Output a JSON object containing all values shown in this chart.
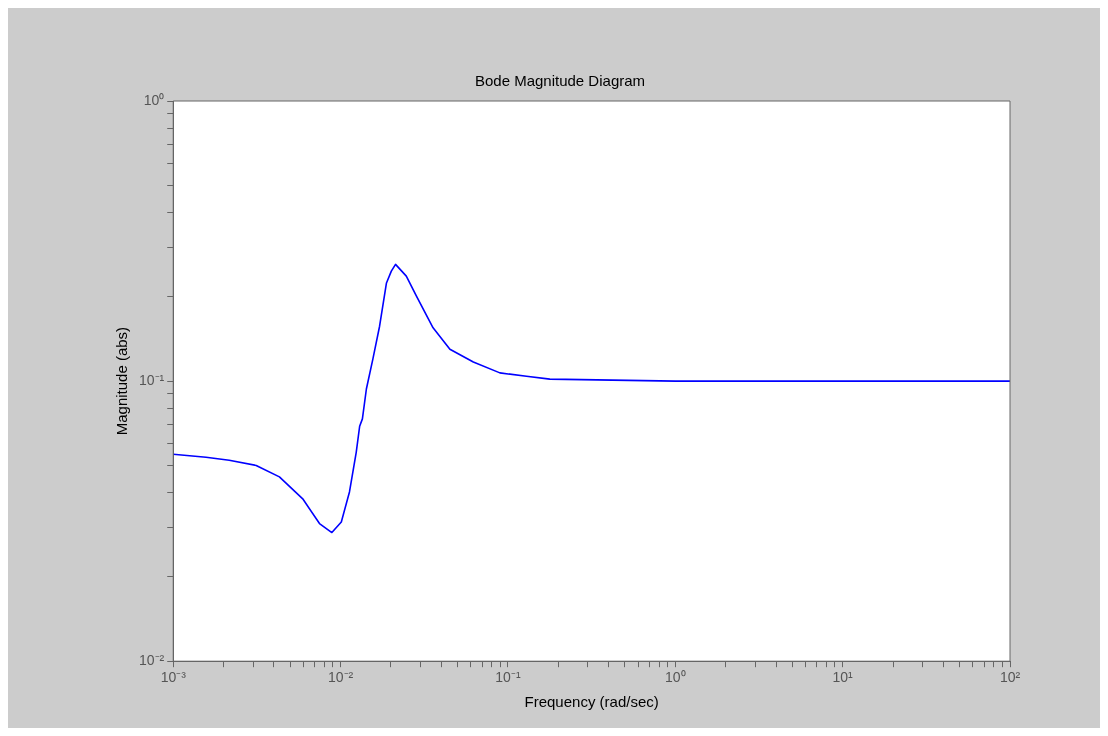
{
  "chart_data": {
    "type": "line",
    "title": "Bode Magnitude Diagram",
    "xlabel": "Frequency (rad/sec)",
    "ylabel": "Magnitude (abs)",
    "log": "xy",
    "grid": false,
    "legend": false,
    "marker": "none",
    "line_style": "solid",
    "xlim": [
      0.001,
      100
    ],
    "ylim": [
      0.01,
      1
    ],
    "xticks": [
      {
        "value": 0.001,
        "label": "10⁻³"
      },
      {
        "value": 0.002,
        "label": null
      },
      {
        "value": 0.003,
        "label": null
      },
      {
        "value": 0.004,
        "label": null
      },
      {
        "value": 0.005,
        "label": null
      },
      {
        "value": 0.006,
        "label": null
      },
      {
        "value": 0.007,
        "label": null
      },
      {
        "value": 0.008,
        "label": null
      },
      {
        "value": 0.009,
        "label": null
      },
      {
        "value": 0.01,
        "label": "10⁻²"
      },
      {
        "value": 0.02,
        "label": null
      },
      {
        "value": 0.03,
        "label": null
      },
      {
        "value": 0.04,
        "label": null
      },
      {
        "value": 0.05,
        "label": null
      },
      {
        "value": 0.06,
        "label": null
      },
      {
        "value": 0.07,
        "label": null
      },
      {
        "value": 0.08,
        "label": null
      },
      {
        "value": 0.09,
        "label": null
      },
      {
        "value": 0.1,
        "label": "10⁻¹"
      },
      {
        "value": 0.2,
        "label": null
      },
      {
        "value": 0.3,
        "label": null
      },
      {
        "value": 0.4,
        "label": null
      },
      {
        "value": 0.5,
        "label": null
      },
      {
        "value": 0.6,
        "label": null
      },
      {
        "value": 0.7,
        "label": null
      },
      {
        "value": 0.8,
        "label": null
      },
      {
        "value": 0.9,
        "label": null
      },
      {
        "value": 1,
        "label": "10⁰"
      },
      {
        "value": 2,
        "label": null
      },
      {
        "value": 3,
        "label": null
      },
      {
        "value": 4,
        "label": null
      },
      {
        "value": 5,
        "label": null
      },
      {
        "value": 6,
        "label": null
      },
      {
        "value": 7,
        "label": null
      },
      {
        "value": 8,
        "label": null
      },
      {
        "value": 9,
        "label": null
      },
      {
        "value": 10,
        "label": "10¹"
      },
      {
        "value": 20,
        "label": null
      },
      {
        "value": 30,
        "label": null
      },
      {
        "value": 40,
        "label": null
      },
      {
        "value": 50,
        "label": null
      },
      {
        "value": 60,
        "label": null
      },
      {
        "value": 70,
        "label": null
      },
      {
        "value": 80,
        "label": null
      },
      {
        "value": 90,
        "label": null
      },
      {
        "value": 100,
        "label": "10²"
      }
    ],
    "yticks": [
      {
        "value": 0.01,
        "label": "10⁻²"
      },
      {
        "value": 0.02,
        "label": null
      },
      {
        "value": 0.03,
        "label": null
      },
      {
        "value": 0.04,
        "label": null
      },
      {
        "value": 0.05,
        "label": null
      },
      {
        "value": 0.06,
        "label": null
      },
      {
        "value": 0.07,
        "label": null
      },
      {
        "value": 0.08,
        "label": null
      },
      {
        "value": 0.09,
        "label": null
      },
      {
        "value": 0.1,
        "label": "10⁻¹"
      },
      {
        "value": 0.2,
        "label": null
      },
      {
        "value": 0.3,
        "label": null
      },
      {
        "value": 0.4,
        "label": null
      },
      {
        "value": 0.5,
        "label": null
      },
      {
        "value": 0.6,
        "label": null
      },
      {
        "value": 0.7,
        "label": null
      },
      {
        "value": 0.8,
        "label": null
      },
      {
        "value": 0.9,
        "label": null
      },
      {
        "value": 1,
        "label": "10⁰"
      }
    ],
    "x": [
      0.001,
      0.00157,
      0.00216,
      0.00313,
      0.00431,
      0.00594,
      0.00748,
      0.00887,
      0.0101,
      0.0113,
      0.0124,
      0.013,
      0.0135,
      0.01426,
      0.0156,
      0.0171,
      0.0188,
      0.0201,
      0.0213,
      0.0247,
      0.0284,
      0.0357,
      0.045,
      0.0621,
      0.0895,
      0.129,
      0.178,
      1,
      10,
      100
    ],
    "series": [
      {
        "color": "#0000ff",
        "values": [
          0.0548,
          0.0535,
          0.0522,
          0.05,
          0.0455,
          0.038,
          0.031,
          0.0288,
          0.0314,
          0.0402,
          0.0557,
          0.069,
          0.0733,
          0.0937,
          0.12,
          0.157,
          0.224,
          0.247,
          0.261,
          0.237,
          0.201,
          0.155,
          0.13,
          0.117,
          0.107,
          0.104,
          0.1016,
          0.1,
          0.1,
          0.1
        ]
      }
    ]
  }
}
